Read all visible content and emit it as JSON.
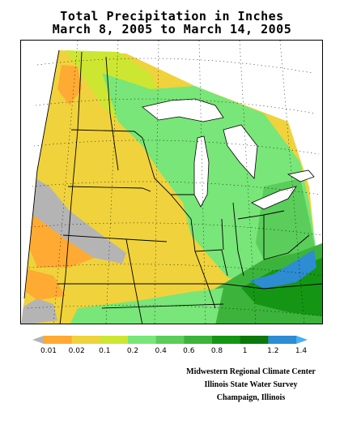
{
  "title": {
    "line1": "Total Precipitation in Inches",
    "line2": "March 8, 2005 to March 14, 2005"
  },
  "legend": {
    "labels": [
      "0.01",
      "0.02",
      "0.1",
      "0.2",
      "0.4",
      "0.6",
      "0.8",
      "1",
      "1.2",
      "1.4"
    ],
    "colors": [
      "#b4b4b4",
      "#ffaa33",
      "#f0d23c",
      "#cde632",
      "#78e678",
      "#5acd5a",
      "#3cb43c",
      "#149614",
      "#0a780a",
      "#2d8cd2",
      "#46aff0"
    ]
  },
  "credits": {
    "line1": "Midwestern Regional Climate Center",
    "line2": "Illinois State Water Survey",
    "line3": "Champaign, Illinois"
  }
}
